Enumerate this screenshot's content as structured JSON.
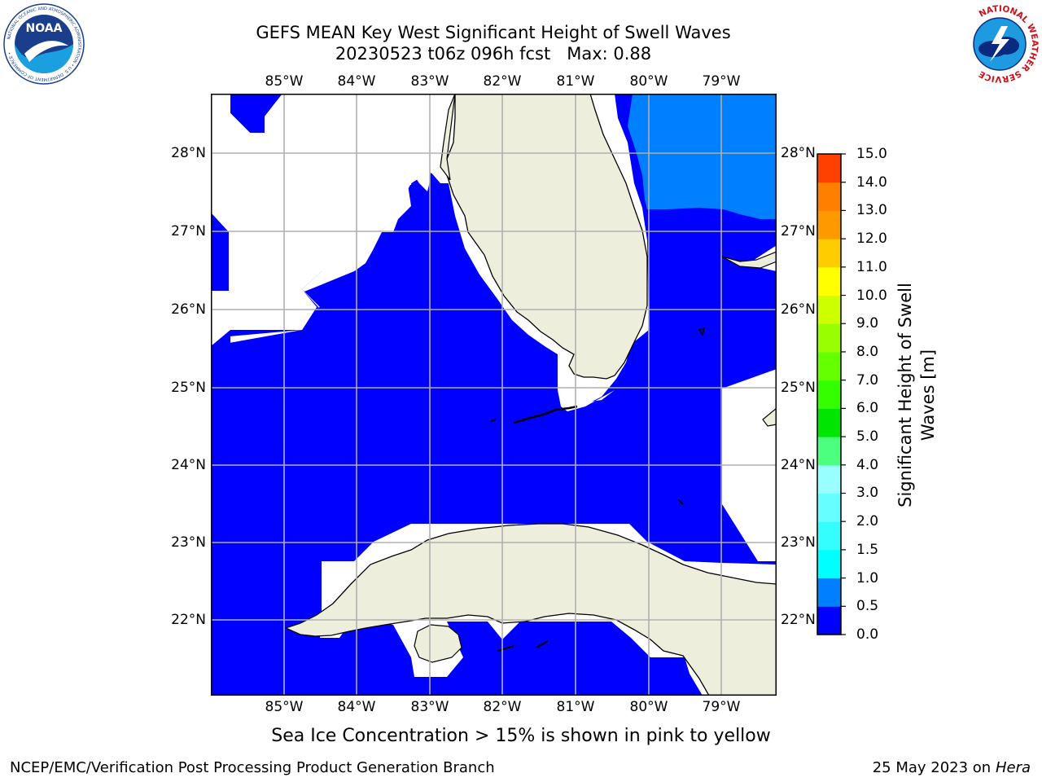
{
  "title": {
    "line1": "GEFS MEAN Key West Significant Height of Swell Waves",
    "line2": "20230523 t06z 096h fcst   Max: 0.88"
  },
  "logos": {
    "noaa_text": "NOAA",
    "noaa_ring": "NATIONAL OCEANIC AND ATMOSPHERIC ADMINISTRATION • U.S. DEPARTMENT OF COMMERCE •",
    "nws_ring": "NATIONAL WEATHER SERVICE"
  },
  "map": {
    "lon_labels": [
      "85°W",
      "84°W",
      "83°W",
      "82°W",
      "81°W",
      "80°W",
      "79°W"
    ],
    "lat_labels": [
      "28°N",
      "27°N",
      "26°N",
      "25°N",
      "24°N",
      "23°N",
      "22°N"
    ],
    "colors": {
      "ocean_0": "#0000ff",
      "ocean_05": "#0080ff",
      "land": "#eeeedd",
      "grid": "#b0b0b0"
    }
  },
  "colorbar": {
    "label": "Significant Height of Swell Waves [m]",
    "label_line1": "Significant Height of Swell",
    "label_line2": "Waves [m]",
    "ticks": [
      "0.0",
      "0.5",
      "1.0",
      "1.5",
      "2.0",
      "3.0",
      "4.0",
      "5.0",
      "6.0",
      "7.0",
      "8.0",
      "9.0",
      "10.0",
      "11.0",
      "12.0",
      "13.0",
      "14.0",
      "15.0"
    ],
    "colors": [
      "#0000ff",
      "#0080ff",
      "#00ffff",
      "#33ffff",
      "#66ffff",
      "#99ffff",
      "#4cff7f",
      "#00e600",
      "#33ff00",
      "#66ff00",
      "#99ff00",
      "#ccff00",
      "#ffff00",
      "#ffcc00",
      "#ff9900",
      "#ff8000",
      "#ff4000",
      "#ff0000"
    ]
  },
  "note": "Sea Ice Concentration > 15% is shown in pink to yellow",
  "footer": {
    "left": "NCEP/EMC/Verification Post Processing Product Generation Branch",
    "date": "25 May 2023 on",
    "machine": "Hera"
  }
}
